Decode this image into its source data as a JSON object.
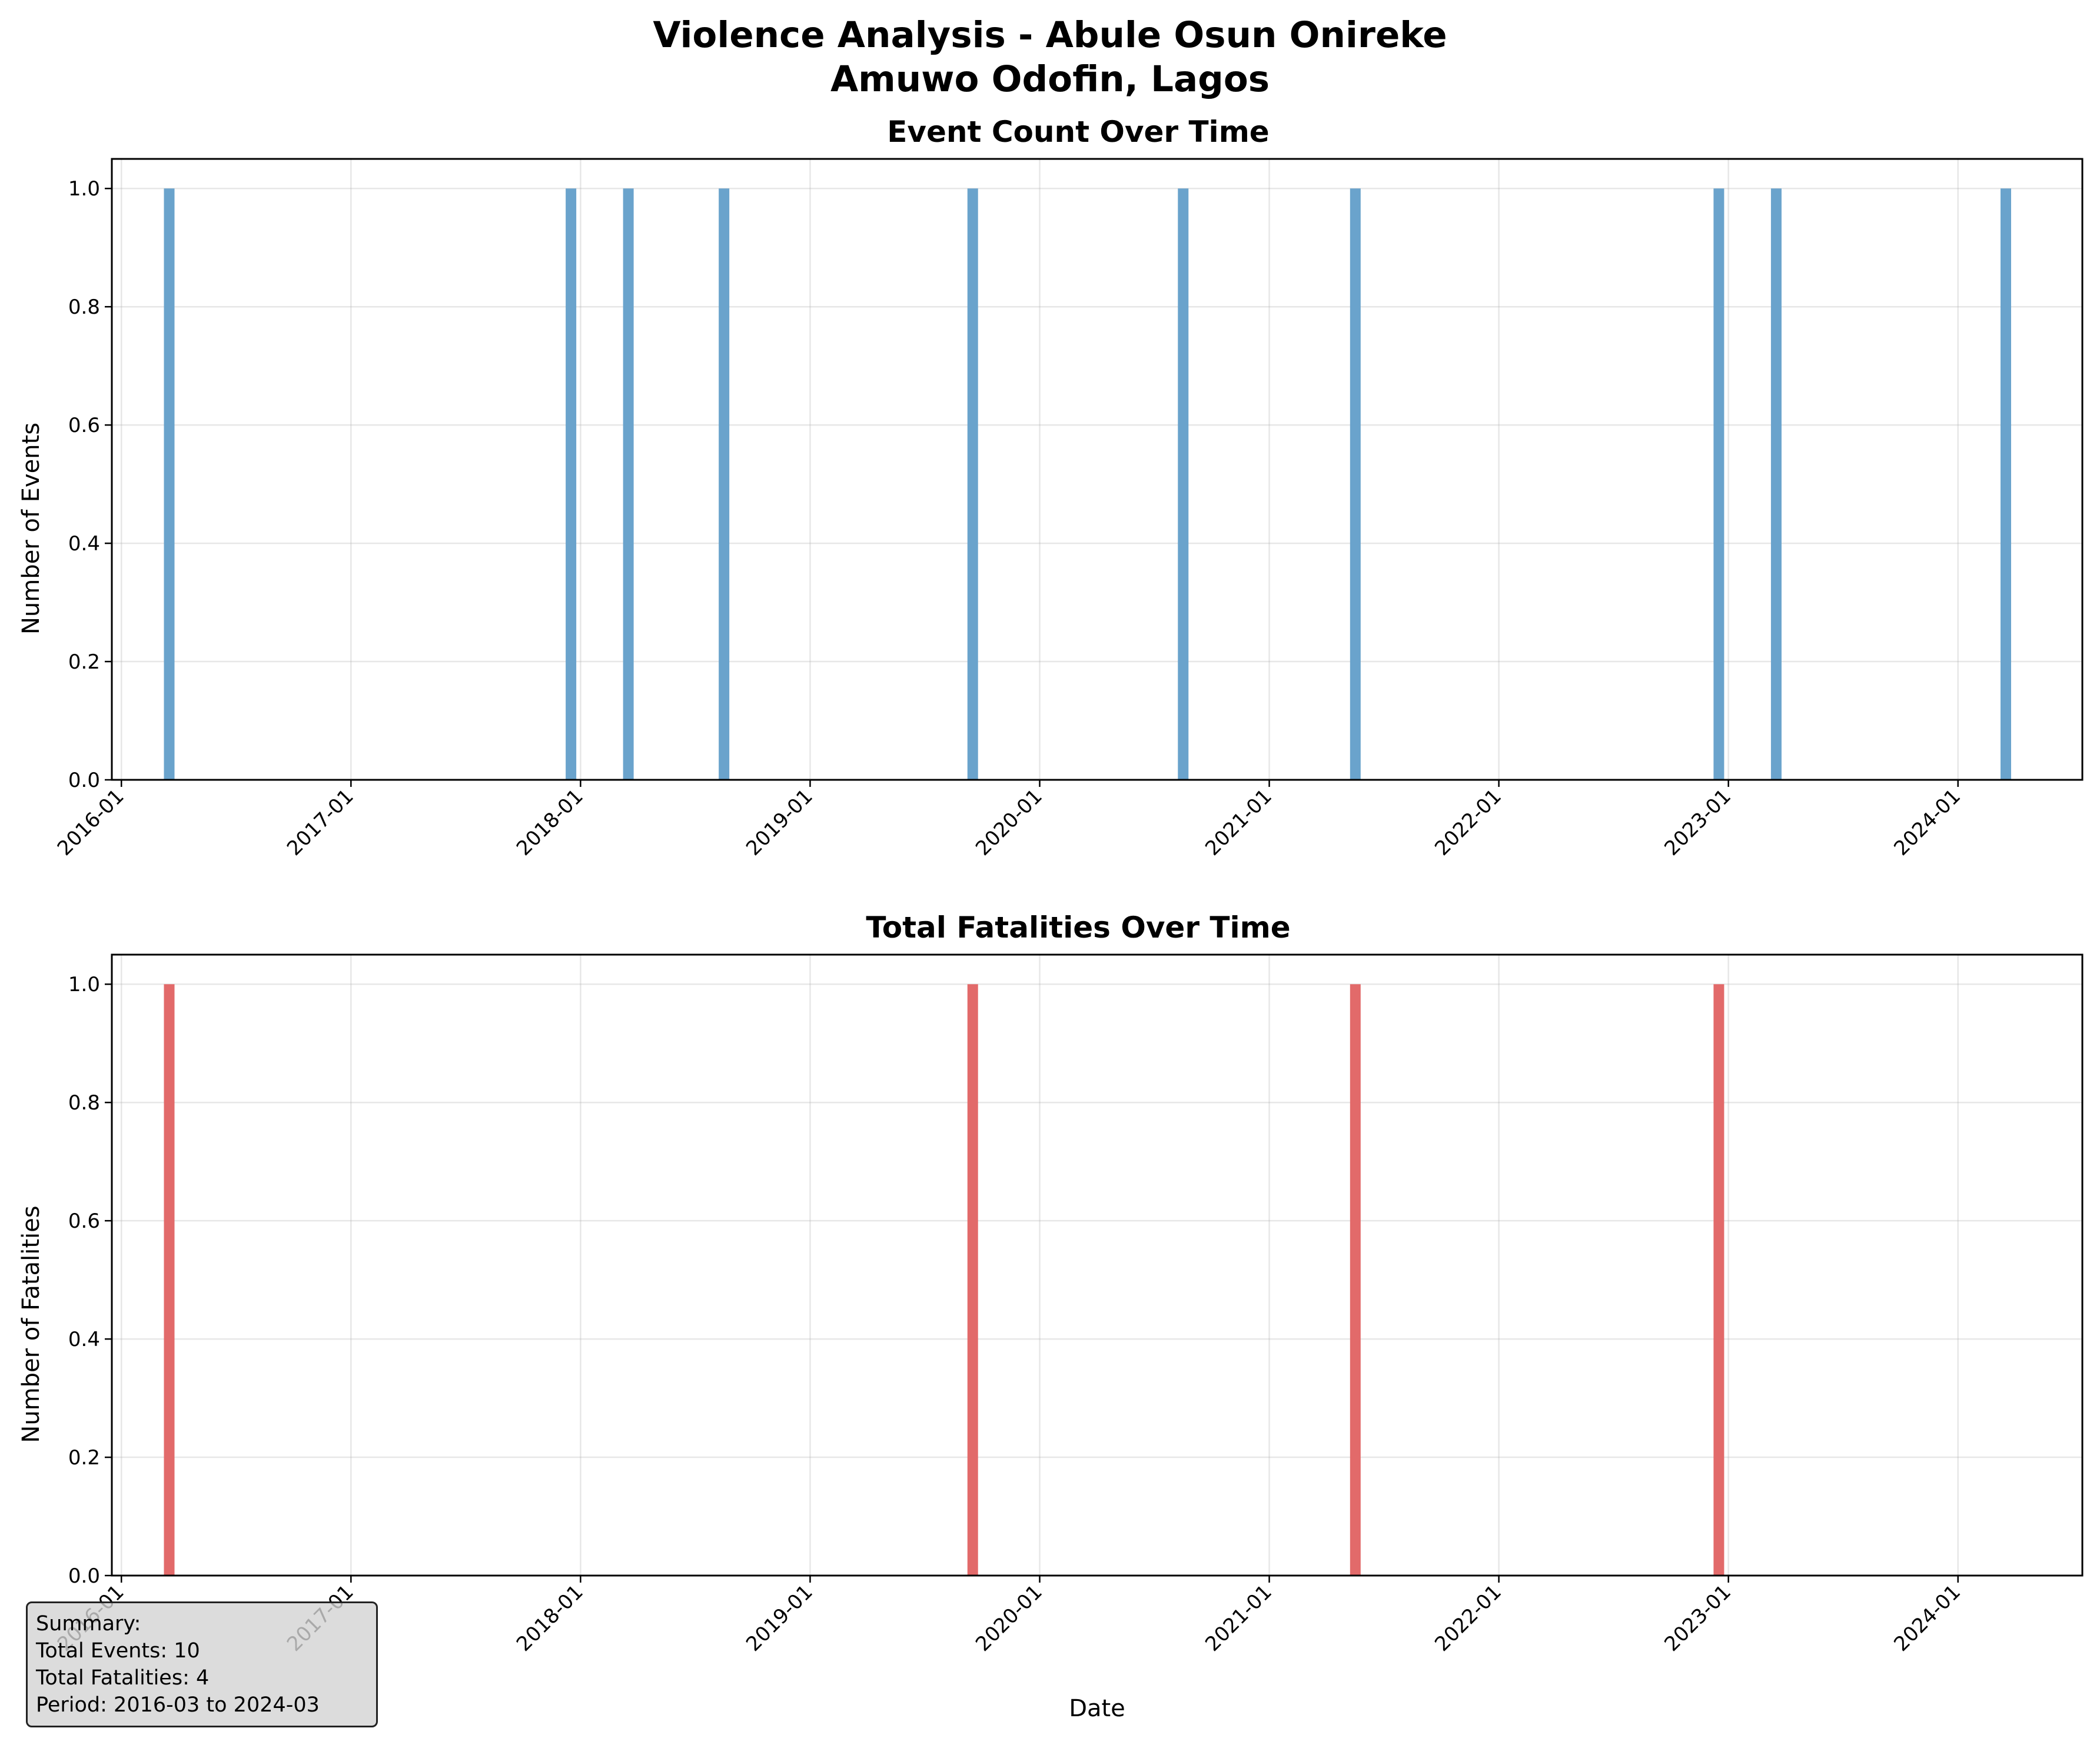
{
  "title_line1": "Violence Analysis - Abule Osun Onireke",
  "title_line2": "Amuwo Odofin, Lagos",
  "summary": {
    "heading": "Summary:",
    "total_events": "Total Events: 10",
    "total_fatalities": "Total Fatalities: 4",
    "period": "Period: 2016-03 to 2024-03"
  },
  "colors": {
    "events": "#6aa3cc",
    "fatalities": "#e26a6a"
  },
  "chart_data": [
    {
      "type": "bar",
      "title": "Event Count Over Time",
      "xlabel": "",
      "ylabel": "Number of Events",
      "ylim": [
        0,
        1.05
      ],
      "xlim": [
        "2015-12",
        "2024-07"
      ],
      "grid": true,
      "xticks": [
        "2016-01",
        "2017-01",
        "2018-01",
        "2019-01",
        "2020-01",
        "2021-01",
        "2022-01",
        "2023-01",
        "2024-01"
      ],
      "yticks": [
        "0.0",
        "0.2",
        "0.4",
        "0.6",
        "0.8",
        "1.0"
      ],
      "x": [
        "2016-03",
        "2017-12",
        "2018-03",
        "2018-08",
        "2019-09",
        "2020-08",
        "2021-05",
        "2022-12",
        "2023-03",
        "2024-03"
      ],
      "values": [
        1,
        1,
        1,
        1,
        1,
        1,
        1,
        1,
        1,
        1
      ]
    },
    {
      "type": "bar",
      "title": "Total Fatalities Over Time",
      "xlabel": "Date",
      "ylabel": "Number of Fatalities",
      "ylim": [
        0,
        1.05
      ],
      "xlim": [
        "2015-12",
        "2024-07"
      ],
      "grid": true,
      "xticks": [
        "2016-01",
        "2017-01",
        "2018-01",
        "2019-01",
        "2020-01",
        "2021-01",
        "2022-01",
        "2023-01",
        "2024-01"
      ],
      "yticks": [
        "0.0",
        "0.2",
        "0.4",
        "0.6",
        "0.8",
        "1.0"
      ],
      "x": [
        "2016-03",
        "2019-09",
        "2021-05",
        "2022-12"
      ],
      "values": [
        1,
        1,
        1,
        1
      ]
    }
  ]
}
